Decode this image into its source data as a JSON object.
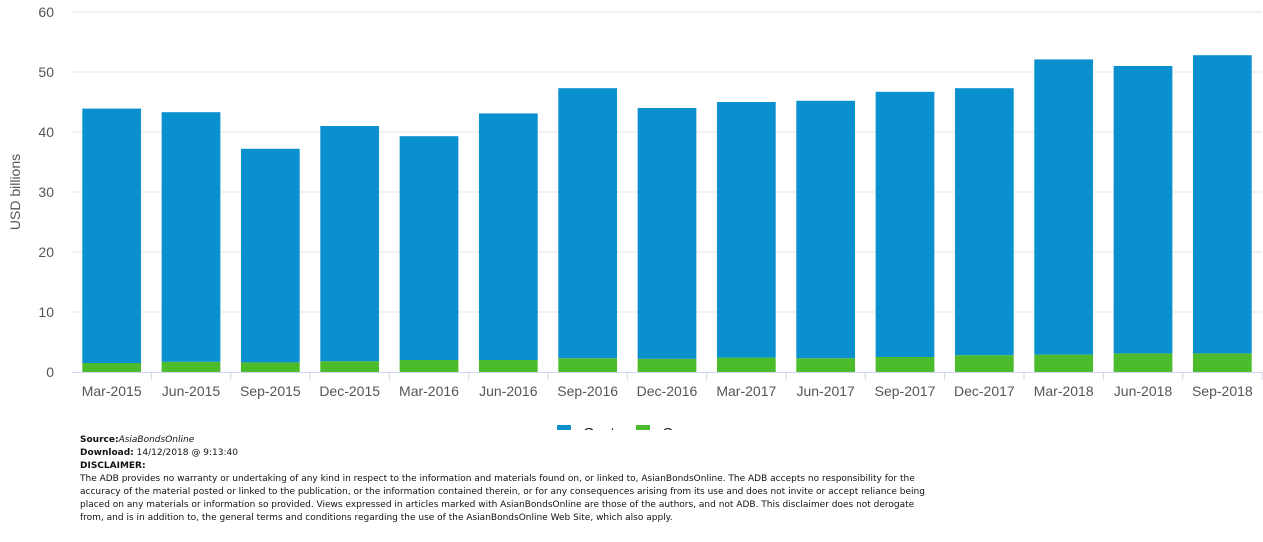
{
  "chart_data": {
    "type": "bar",
    "stacked": true,
    "title": "",
    "xlabel": "",
    "ylabel": "USD billions",
    "ylim": [
      0,
      60
    ],
    "yticks": [
      0,
      10,
      20,
      30,
      40,
      50,
      60
    ],
    "grid": true,
    "legend": "bottom-center",
    "categories": [
      "Mar-2015",
      "Jun-2015",
      "Sep-2015",
      "Dec-2015",
      "Mar-2016",
      "Jun-2016",
      "Sep-2016",
      "Dec-2016",
      "Mar-2017",
      "Jun-2017",
      "Sep-2017",
      "Dec-2017",
      "Mar-2018",
      "Jun-2018",
      "Sep-2018"
    ],
    "series": [
      {
        "name": "Govt",
        "color": "#0a8fcf",
        "values": [
          42.4,
          41.6,
          35.6,
          39.2,
          37.3,
          41.1,
          45.0,
          41.8,
          42.6,
          42.9,
          44.2,
          44.5,
          49.2,
          47.9,
          49.7
        ]
      },
      {
        "name": "Corp",
        "color": "#4cbb2c",
        "values": [
          1.5,
          1.7,
          1.6,
          1.8,
          2.0,
          2.0,
          2.3,
          2.2,
          2.4,
          2.3,
          2.5,
          2.8,
          2.9,
          3.1,
          3.1
        ]
      }
    ]
  },
  "footer": {
    "source_label": "Source:",
    "source_value": "AsiaBondsOnline",
    "download_label": "Download:",
    "download_value": "14/12/2018 @ 9:13:40",
    "disclaimer_label": "DISCLAIMER:",
    "disclaimer_lines": [
      "The ADB provides no warranty or undertaking of any kind in respect to the information and materials found on, or linked to, AsianBondsOnline. The ADB accepts no responsibility for the",
      "accuracy of the material posted or linked to the publication, or the information contained therein, or for any consequences arising from its use and does not invite or accept reliance being",
      "placed on any materials or information so provided. Views expressed in articles marked with AsianBondsOnline are those of the authors, and not ADB. This disclaimer does not derogate",
      "from, and is in addition to, the general terms and conditions regarding the use of the AsianBondsOnline Web Site, which also apply."
    ]
  }
}
